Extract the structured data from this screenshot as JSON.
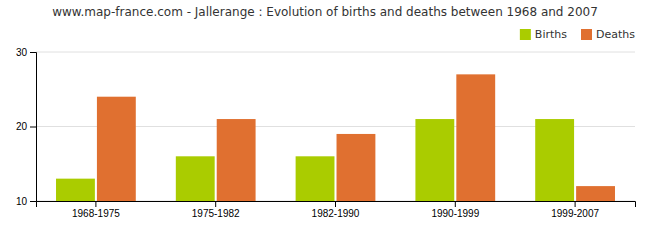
{
  "chart_data": {
    "type": "bar",
    "title": "www.map-france.com - Jallerange : Evolution of births and deaths between 1968 and 2007",
    "categories": [
      "1968-1975",
      "1975-1982",
      "1982-1990",
      "1990-1999",
      "1999-2007"
    ],
    "series": [
      {
        "name": "Births",
        "color": "#aacc00",
        "values": [
          13,
          16,
          16,
          21,
          21
        ]
      },
      {
        "name": "Deaths",
        "color": "#e07030",
        "values": [
          24,
          21,
          19,
          27,
          12
        ]
      }
    ],
    "ylim": [
      10,
      30
    ],
    "yticks": [
      10,
      20,
      30
    ],
    "grid": true,
    "legend": "upper right"
  }
}
